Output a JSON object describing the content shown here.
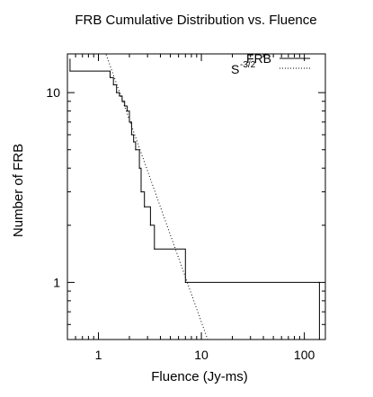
{
  "chart_data": {
    "type": "line",
    "title": "FRB Cumulative Distribution vs. Fluence",
    "xlabel": "Fluence (Jy-ms)",
    "ylabel": "Number of FRB",
    "x_scale": "log",
    "y_scale": "log",
    "xlim": [
      0.5,
      160
    ],
    "ylim": [
      0.5,
      16
    ],
    "x_ticks": [
      {
        "value": 1,
        "label": "1"
      },
      {
        "value": 10,
        "label": "10"
      },
      {
        "value": 100,
        "label": "100"
      }
    ],
    "y_ticks": [
      {
        "value": 1,
        "label": "1"
      },
      {
        "value": 10,
        "label": "10"
      }
    ],
    "legend_position": "top-right",
    "series": [
      {
        "name": "FRB",
        "style": "solid step",
        "color": "#000000",
        "x": [
          0.53,
          0.53,
          1.3,
          1.4,
          1.5,
          1.6,
          1.7,
          1.8,
          1.9,
          2.0,
          2.1,
          2.2,
          2.3,
          2.5,
          2.6,
          2.8,
          3.2,
          3.5,
          7.0,
          140.0
        ],
        "y": [
          15,
          13,
          12,
          11,
          10,
          9.6,
          9,
          8.5,
          8,
          7,
          6,
          5.5,
          5,
          4,
          3,
          2.5,
          2,
          1.5,
          1,
          0.5
        ]
      },
      {
        "name": "S^-3/2",
        "style": "dotted",
        "color": "#000000",
        "x": [
          0.6,
          11.5
        ],
        "y": [
          45,
          0.5
        ]
      }
    ]
  }
}
